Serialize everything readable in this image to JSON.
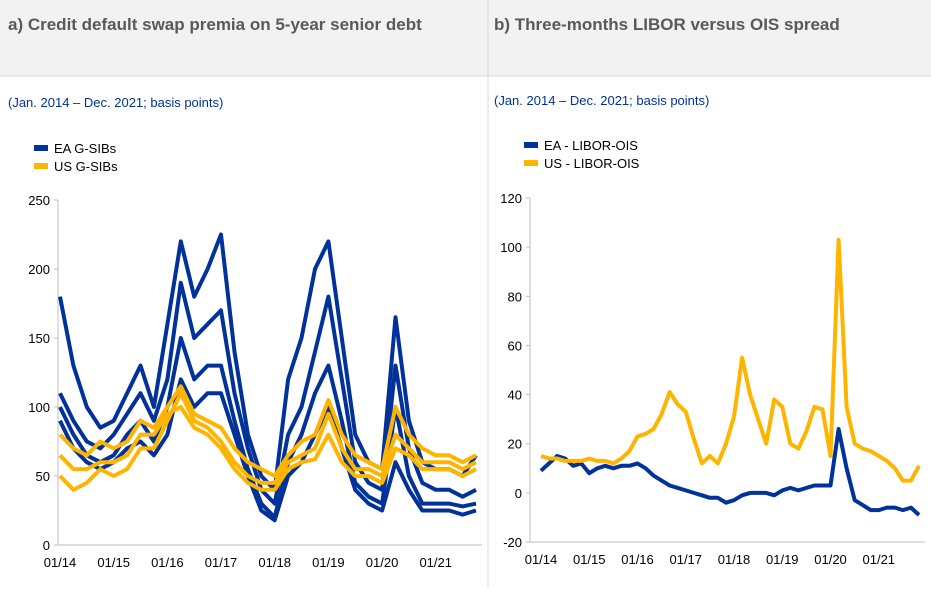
{
  "chart_data": [
    {
      "type": "line",
      "title": "a) Credit default swap premia on 5-year senior debt",
      "subtitle": "(Jan. 2014 – Dec. 2021; basis points)",
      "categories": [
        "01/14",
        null,
        null,
        null,
        "01/15",
        null,
        null,
        null,
        "01/16",
        null,
        null,
        null,
        "01/17",
        null,
        null,
        null,
        "01/18",
        null,
        null,
        null,
        "01/19",
        null,
        null,
        null,
        "01/20",
        null,
        null,
        null,
        "01/21",
        null,
        null,
        null
      ],
      "ylim": [
        0,
        250
      ],
      "yticks": [
        0,
        50,
        100,
        150,
        200,
        250
      ],
      "grid": false,
      "series": [
        {
          "name": "EA G-SIBs",
          "color": "#003299",
          "lines": [
            [
              180,
              130,
              100,
              85,
              90,
              110,
              130,
              100,
              160,
              220,
              180,
              200,
              225,
              140,
              80,
              50,
              40,
              120,
              150,
              200,
              220,
              150,
              80,
              60,
              55,
              165,
              90,
              60,
              55,
              55,
              50,
              65
            ],
            [
              110,
              90,
              75,
              70,
              80,
              95,
              110,
              90,
              120,
              190,
              150,
              160,
              170,
              110,
              70,
              40,
              30,
              80,
              100,
              140,
              180,
              120,
              60,
              45,
              40,
              130,
              70,
              45,
              40,
              40,
              35,
              40
            ],
            [
              100,
              80,
              65,
              60,
              65,
              80,
              90,
              75,
              100,
              150,
              120,
              130,
              130,
              90,
              55,
              30,
              20,
              60,
              80,
              110,
              130,
              90,
              45,
              35,
              30,
              100,
              50,
              30,
              30,
              30,
              28,
              30
            ],
            [
              90,
              70,
              60,
              55,
              60,
              70,
              75,
              65,
              80,
              120,
              100,
              110,
              110,
              80,
              50,
              25,
              18,
              50,
              60,
              80,
              100,
              70,
              40,
              30,
              25,
              60,
              40,
              25,
              25,
              25,
              22,
              25
            ]
          ]
        },
        {
          "name": "US G-SIBs",
          "color": "#ffb400",
          "lines": [
            [
              50,
              40,
              45,
              55,
              50,
              55,
              70,
              70,
              90,
              110,
              90,
              85,
              75,
              60,
              50,
              45,
              45,
              60,
              65,
              70,
              95,
              70,
              55,
              55,
              50,
              80,
              70,
              60,
              60,
              60,
              55,
              60
            ],
            [
              65,
              55,
              55,
              60,
              60,
              65,
              80,
              80,
              95,
              100,
              85,
              80,
              70,
              55,
              45,
              40,
              40,
              55,
              60,
              62,
              80,
              60,
              50,
              50,
              45,
              70,
              65,
              55,
              55,
              55,
              50,
              55
            ],
            [
              80,
              70,
              65,
              75,
              70,
              75,
              90,
              85,
              100,
              115,
              95,
              90,
              85,
              70,
              60,
              55,
              50,
              65,
              75,
              80,
              105,
              80,
              65,
              60,
              55,
              100,
              80,
              70,
              65,
              65,
              60,
              65
            ]
          ]
        }
      ]
    },
    {
      "type": "line",
      "title": "b) Three-months LIBOR versus OIS spread",
      "subtitle": "(Jan. 2014 – Dec. 2021; basis points)",
      "categories": [
        "01/14",
        null,
        null,
        null,
        null,
        null,
        "01/15",
        null,
        null,
        null,
        null,
        null,
        "01/16",
        null,
        null,
        null,
        null,
        null,
        "01/17",
        null,
        null,
        null,
        null,
        null,
        "01/18",
        null,
        null,
        null,
        null,
        null,
        "01/19",
        null,
        null,
        null,
        null,
        null,
        "01/20",
        null,
        null,
        null,
        null,
        null,
        "01/21",
        null,
        null,
        null,
        null,
        null
      ],
      "ylim": [
        -20,
        120
      ],
      "yticks": [
        -20,
        0,
        20,
        40,
        60,
        80,
        100,
        120
      ],
      "grid": false,
      "series": [
        {
          "name": "EA - LIBOR-OIS",
          "color": "#003299",
          "values": [
            9,
            12,
            15,
            14,
            11,
            12,
            8,
            10,
            11,
            10,
            11,
            11,
            12,
            10,
            7,
            5,
            3,
            2,
            1,
            0,
            -1,
            -2,
            -2,
            -4,
            -3,
            -1,
            0,
            0,
            0,
            -1,
            1,
            2,
            1,
            2,
            3,
            3,
            3,
            26,
            10,
            -3,
            -5,
            -7,
            -7,
            -6,
            -6,
            -7,
            -6,
            -9
          ]
        },
        {
          "name": "US - LIBOR-OIS",
          "color": "#ffb400",
          "values": [
            15,
            14,
            14,
            13,
            13,
            13,
            14,
            13,
            13,
            12,
            14,
            17,
            23,
            24,
            26,
            32,
            41,
            36,
            33,
            22,
            12,
            15,
            12,
            20,
            31,
            55,
            40,
            30,
            20,
            38,
            35,
            20,
            18,
            25,
            35,
            34,
            15,
            103,
            35,
            20,
            18,
            17,
            15,
            13,
            10,
            5,
            5,
            11
          ]
        }
      ]
    }
  ]
}
